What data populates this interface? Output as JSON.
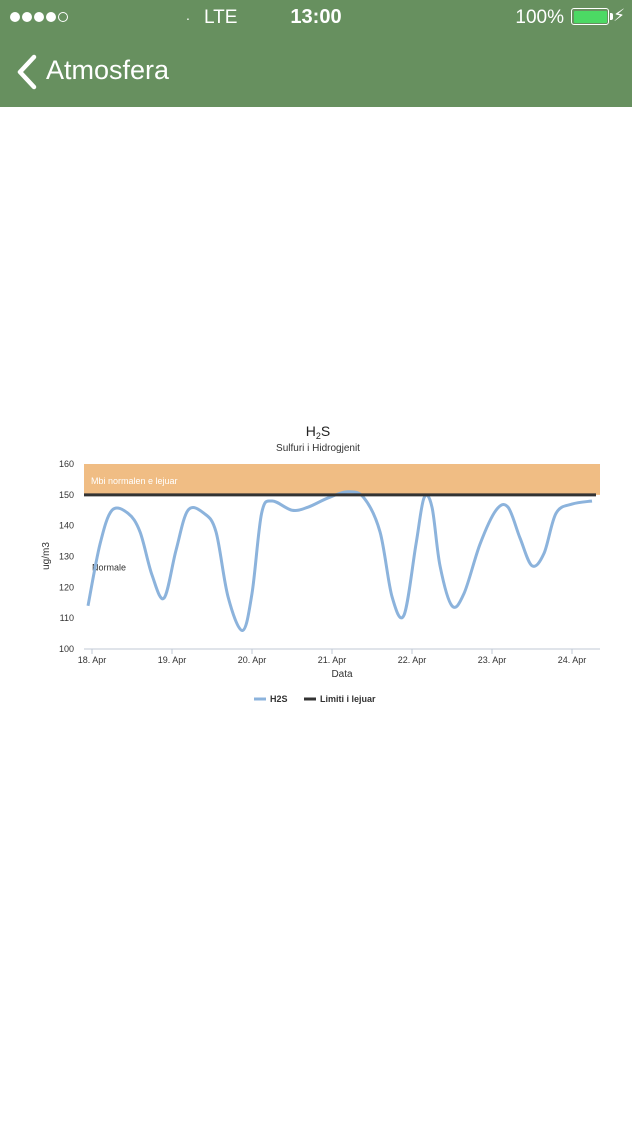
{
  "status_bar": {
    "signal_dots_filled": 4,
    "signal_dots_total": 5,
    "carrier": ".",
    "network": "LTE",
    "time": "13:00",
    "battery": "100%",
    "battery_color": "#4cd964",
    "bolt_icon": "⚡"
  },
  "nav": {
    "title": "Atmosfera",
    "back_icon": "chevron-left-icon",
    "background": "#67905f"
  },
  "chart_data": {
    "type": "line",
    "title_main": "H",
    "title_sub_script": "2",
    "title_end": "S",
    "subtitle": "Sulfuri i Hidrogjenit",
    "xlabel": "Data",
    "ylabel": "ug/m3",
    "ylim": [
      100,
      160
    ],
    "yticks": [
      100,
      110,
      120,
      130,
      140,
      150,
      160
    ],
    "xlim": [
      17.9,
      24.35
    ],
    "xticks": [
      {
        "value": 18,
        "label": "18. Apr"
      },
      {
        "value": 19,
        "label": "19. Apr"
      },
      {
        "value": 20,
        "label": "20. Apr"
      },
      {
        "value": 21,
        "label": "21. Apr"
      },
      {
        "value": 22,
        "label": "22. Apr"
      },
      {
        "value": 23,
        "label": "23. Apr"
      },
      {
        "value": 24,
        "label": "24. Apr"
      }
    ],
    "plot_band": {
      "from": 150,
      "to": 160,
      "label": "Mbi normalen e lejuar",
      "color": "#f0bd84"
    },
    "normal_label": "Normale",
    "series": [
      {
        "name": "H2S",
        "color": "#8cb3dc",
        "points": [
          [
            17.95,
            114
          ],
          [
            18.1,
            134
          ],
          [
            18.25,
            145
          ],
          [
            18.45,
            144
          ],
          [
            18.6,
            138
          ],
          [
            18.75,
            124
          ],
          [
            18.9,
            116.5
          ],
          [
            19.05,
            132
          ],
          [
            19.2,
            145
          ],
          [
            19.4,
            144
          ],
          [
            19.55,
            138
          ],
          [
            19.7,
            117
          ],
          [
            19.88,
            106
          ],
          [
            20.0,
            118
          ],
          [
            20.12,
            144
          ],
          [
            20.25,
            148
          ],
          [
            20.5,
            145
          ],
          [
            20.7,
            146
          ],
          [
            20.95,
            149
          ],
          [
            21.2,
            151
          ],
          [
            21.4,
            149
          ],
          [
            21.6,
            138
          ],
          [
            21.75,
            117
          ],
          [
            21.9,
            111
          ],
          [
            22.05,
            134
          ],
          [
            22.15,
            149
          ],
          [
            22.25,
            146
          ],
          [
            22.35,
            127
          ],
          [
            22.5,
            114
          ],
          [
            22.65,
            118
          ],
          [
            22.85,
            134
          ],
          [
            23.05,
            145
          ],
          [
            23.2,
            146
          ],
          [
            23.35,
            136
          ],
          [
            23.5,
            127
          ],
          [
            23.65,
            131
          ],
          [
            23.8,
            144
          ],
          [
            24.0,
            147
          ],
          [
            24.25,
            148
          ]
        ]
      },
      {
        "name": "Limiti i lejuar",
        "color": "#333333",
        "points": [
          [
            17.9,
            150
          ],
          [
            24.3,
            150
          ]
        ]
      }
    ],
    "legend_placement": "bottom-center"
  }
}
